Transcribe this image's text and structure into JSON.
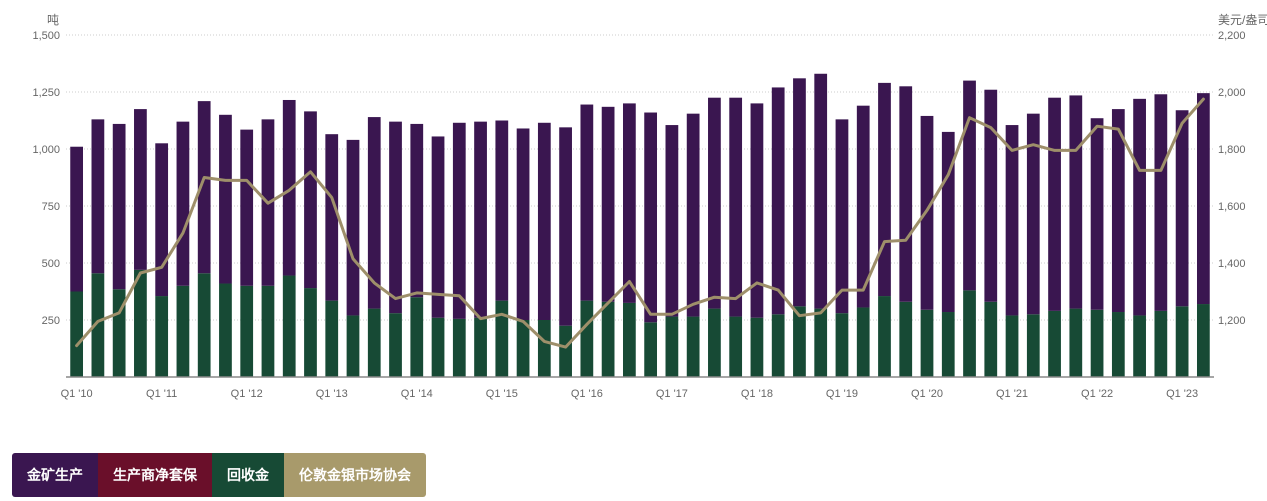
{
  "chart_data": {
    "type": "bar",
    "stacked": true,
    "y_left_label": "吨",
    "y_right_label": "美元/盎司",
    "y_left_ticks": [
      "1,500",
      "1,250",
      "1,000",
      "750",
      "500",
      "250"
    ],
    "y_right_ticks": [
      "2,200",
      "2,000",
      "1,800",
      "1,600",
      "1,400",
      "1,200"
    ],
    "ylim_left": [
      0,
      1500
    ],
    "ylim_right": [
      1000,
      2200
    ],
    "grid": "horizontal dotted",
    "x_tick_labels": [
      "Q1 '10",
      "Q1 '11",
      "Q1 '12",
      "Q1 '13",
      "Q1 '14",
      "Q1 '15",
      "Q1 '16",
      "Q1 '17",
      "Q1 '18",
      "Q1 '19",
      "Q1 '20",
      "Q1 '21",
      "Q1 '22",
      "Q1 '23"
    ],
    "x_tick_indices": [
      0,
      4,
      8,
      12,
      16,
      20,
      24,
      28,
      32,
      36,
      40,
      44,
      48,
      52
    ],
    "categories": [
      "Q1 '10",
      "Q2 '10",
      "Q3 '10",
      "Q4 '10",
      "Q1 '11",
      "Q2 '11",
      "Q3 '11",
      "Q4 '11",
      "Q1 '12",
      "Q2 '12",
      "Q3 '12",
      "Q4 '12",
      "Q1 '13",
      "Q2 '13",
      "Q3 '13",
      "Q4 '13",
      "Q1 '14",
      "Q2 '14",
      "Q3 '14",
      "Q4 '14",
      "Q1 '15",
      "Q2 '15",
      "Q3 '15",
      "Q4 '15",
      "Q1 '16",
      "Q2 '16",
      "Q3 '16",
      "Q4 '16",
      "Q1 '17",
      "Q2 '17",
      "Q3 '17",
      "Q4 '17",
      "Q1 '18",
      "Q2 '18",
      "Q3 '18",
      "Q4 '18",
      "Q1 '19",
      "Q2 '19",
      "Q3 '19",
      "Q4 '19",
      "Q1 '20",
      "Q2 '20",
      "Q3 '20",
      "Q4 '20",
      "Q1 '21",
      "Q2 '21",
      "Q3 '21",
      "Q4 '21",
      "Q1 '22",
      "Q2 '22",
      "Q3 '22",
      "Q4 '22",
      "Q1 '23",
      "Q2 '23"
    ],
    "series": [
      {
        "name": "回收金",
        "kind": "bar",
        "axis": "left",
        "color": "#174a35",
        "values": [
          375,
          455,
          385,
          470,
          355,
          400,
          455,
          410,
          400,
          400,
          445,
          390,
          335,
          270,
          300,
          280,
          350,
          260,
          255,
          260,
          335,
          250,
          250,
          225,
          335,
          330,
          325,
          240,
          265,
          265,
          300,
          265,
          260,
          275,
          310,
          300,
          280,
          305,
          355,
          330,
          295,
          285,
          380,
          330,
          270,
          275,
          290,
          300,
          295,
          285,
          270,
          290,
          310,
          320
        ]
      },
      {
        "name": "金矿生产",
        "kind": "bar",
        "axis": "left",
        "color": "#3a1650",
        "values": [
          635,
          675,
          725,
          705,
          670,
          720,
          755,
          740,
          685,
          730,
          770,
          775,
          730,
          770,
          840,
          840,
          760,
          795,
          860,
          860,
          790,
          840,
          865,
          870,
          860,
          855,
          875,
          920,
          840,
          890,
          925,
          960,
          940,
          995,
          1000,
          1030,
          850,
          885,
          935,
          945,
          850,
          790,
          920,
          930,
          835,
          880,
          935,
          935,
          840,
          890,
          950,
          950,
          860,
          925
        ]
      },
      {
        "name": "伦敦金银市场协会",
        "kind": "line",
        "axis": "right",
        "color": "#9e8f6a",
        "values": [
          1110,
          1195,
          1225,
          1365,
          1385,
          1505,
          1700,
          1690,
          1690,
          1610,
          1655,
          1720,
          1630,
          1415,
          1330,
          1275,
          1295,
          1290,
          1285,
          1205,
          1220,
          1195,
          1125,
          1105,
          1185,
          1260,
          1335,
          1220,
          1220,
          1255,
          1280,
          1275,
          1330,
          1305,
          1215,
          1225,
          1305,
          1305,
          1475,
          1480,
          1585,
          1710,
          1910,
          1875,
          1795,
          1815,
          1795,
          1795,
          1880,
          1870,
          1725,
          1725,
          1890,
          1975
        ]
      }
    ]
  },
  "legend": {
    "items": [
      {
        "label": "金矿生产",
        "color": "#3a1650"
      },
      {
        "label": "生产商净套保",
        "color": "#6a0f2a"
      },
      {
        "label": "回收金",
        "color": "#174a35"
      },
      {
        "label": "伦敦金银市场协会",
        "color": "#a89a6b"
      }
    ]
  }
}
